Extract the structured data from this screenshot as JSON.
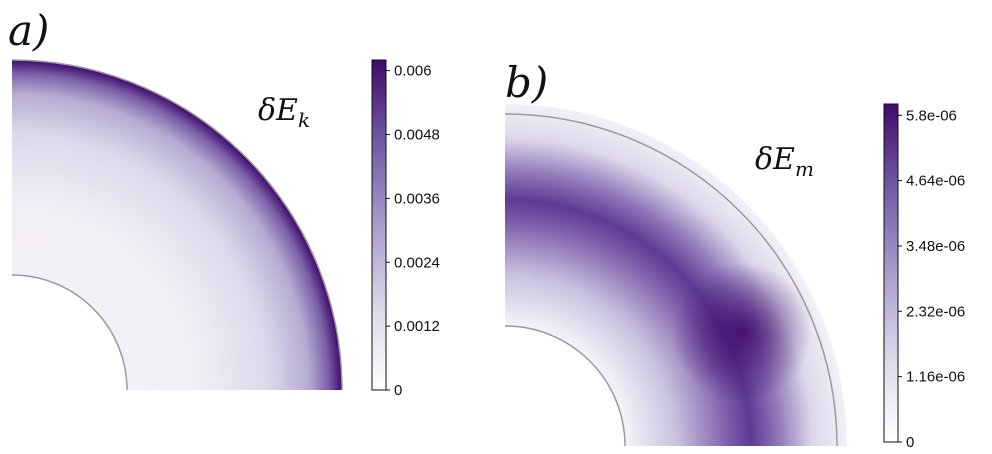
{
  "panels": [
    {
      "label": "a)",
      "field_symbol": "δE",
      "field_sub": "k",
      "colorbar": {
        "ticks": [
          "0",
          "0.0012",
          "0.0024",
          "0.0036",
          "0.0048",
          "0.006"
        ],
        "range": [
          0,
          0.0062
        ],
        "color_low": "#f4f3f8",
        "color_high": "#3f0b6b"
      }
    },
    {
      "label": "b)",
      "field_symbol": "δE",
      "field_sub": "m",
      "colorbar": {
        "ticks": [
          "0",
          "1.16e-06",
          "2.32e-06",
          "3.48e-06",
          "4.64e-06",
          "5.8e-06"
        ],
        "range": [
          0,
          6e-06
        ],
        "color_low": "#f4f3f8",
        "color_high": "#3f0b6b"
      }
    }
  ]
}
